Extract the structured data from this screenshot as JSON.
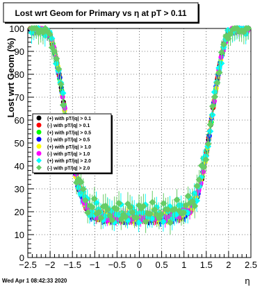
{
  "chart_data": {
    "type": "scatter",
    "title": "Lost wrt Geom for Primary vs   η at pT > 0.11",
    "xlabel": "η",
    "ylabel": "Lost wrt Geom (%)",
    "xlim": [
      -2.5,
      2.5
    ],
    "ylim": [
      0,
      100
    ],
    "x_ticks": [
      -2.5,
      -2,
      -1.5,
      -1,
      -0.5,
      0,
      0.5,
      1,
      1.5,
      2,
      2.5
    ],
    "x_tick_labels": [
      "−2.5",
      "−2",
      "−1.5",
      "−1",
      "−0.5",
      "0",
      "0.5",
      "1",
      "1.5",
      "2",
      "2.5"
    ],
    "y_ticks": [
      0,
      10,
      20,
      30,
      40,
      50,
      60,
      70,
      80,
      90,
      100
    ],
    "y_tick_labels": [
      "0",
      "10",
      "20",
      "30",
      "40",
      "50",
      "60",
      "70",
      "80",
      "90",
      "100"
    ],
    "grid": true,
    "legend_position": "left-middle",
    "timestamp": "Wed Apr  1 08:42:33 2020",
    "shape_profile_x": [
      -2.5,
      -2.4,
      -2.3,
      -2.2,
      -2.1,
      -2.0,
      -1.9,
      -1.8,
      -1.7,
      -1.6,
      -1.5,
      -1.4,
      -1.3,
      -1.2,
      -1.1,
      -1.0,
      -0.9,
      -0.8,
      -0.7,
      -0.6,
      -0.5,
      -0.4,
      -0.3,
      -0.2,
      -0.1,
      0.0,
      0.1,
      0.2,
      0.3,
      0.4,
      0.5,
      0.6,
      0.7,
      0.8,
      0.9,
      1.0,
      1.1,
      1.2,
      1.3,
      1.4,
      1.5,
      1.6,
      1.7,
      1.8,
      1.9,
      2.0,
      2.1,
      2.2,
      2.3,
      2.4,
      2.5
    ],
    "shape_profile_y": [
      100,
      100,
      100,
      100,
      99,
      97,
      90,
      80,
      68,
      55,
      42,
      33,
      27,
      22,
      19,
      18,
      18,
      17,
      17,
      17,
      17,
      17,
      17,
      17,
      17,
      17,
      17,
      17,
      17,
      17,
      17,
      17,
      17,
      18,
      18,
      19,
      20,
      22,
      27,
      34,
      45,
      58,
      72,
      84,
      93,
      98,
      100,
      100,
      100,
      100,
      100
    ],
    "series": [
      {
        "name": "(+) with pT/|q| > 0.1",
        "color": "#000000",
        "marker": "circle",
        "offset": 0.0,
        "wobble": 0.5
      },
      {
        "name": "(-) with pT/|q| > 0.1",
        "color": "#ff0000",
        "marker": "circle",
        "offset": 0.3,
        "wobble": 0.6
      },
      {
        "name": "(+) with pT/|q| > 0.5",
        "color": "#00ff00",
        "marker": "circle",
        "offset": 0.6,
        "wobble": 0.7
      },
      {
        "name": "(-) with pT/|q| > 0.5",
        "color": "#0000ff",
        "marker": "circle",
        "offset": 0.2,
        "wobble": 0.8
      },
      {
        "name": "(+) with pT/|q| > 1.0",
        "color": "#ffff00",
        "marker": "circle",
        "offset": 0.9,
        "wobble": 1.0
      },
      {
        "name": "(-) with pT/|q| > 1.0",
        "color": "#ff00ff",
        "marker": "circle",
        "offset": 0.7,
        "wobble": 1.1
      },
      {
        "name": "(+) with pT/|q| > 2.0",
        "color": "#00ffff",
        "marker": "diamond",
        "offset": 2.2,
        "wobble": 2.6
      },
      {
        "name": "(-) with pT/|q| > 2.0",
        "color": "#66cc66",
        "marker": "diamond",
        "offset": 3.0,
        "wobble": 3.0
      }
    ]
  }
}
